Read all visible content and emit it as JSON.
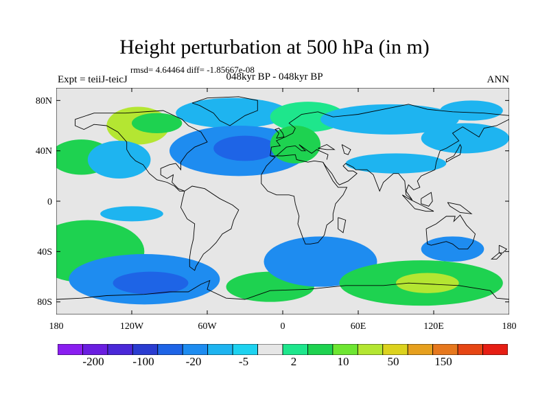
{
  "title": "Height perturbation at 500 hPa (in m)",
  "stats": "rmsd= 4.64464  diff= -1.85667e-08",
  "experiment": "Expt = teiiJ-teicJ",
  "period": "048kyr BP - 048kyr BP",
  "season": "ANN",
  "lat_ticks": [
    "80N",
    "40N",
    "0",
    "40S",
    "80S"
  ],
  "lon_ticks": [
    "180",
    "120W",
    "60W",
    "0",
    "60E",
    "120E",
    "180"
  ],
  "colorbar": {
    "colors": [
      "#8a1ef0",
      "#6a1ee0",
      "#4a28d8",
      "#2a3cd0",
      "#1e64e6",
      "#1e8cf0",
      "#1eb4f0",
      "#1ed2f0",
      "#e6e6e6",
      "#1ee68c",
      "#1ed250",
      "#6ee632",
      "#b4e632",
      "#dcd21e",
      "#e6a01e",
      "#e6781e",
      "#e64614",
      "#e61e14"
    ],
    "labels": [
      "-200",
      "-100",
      "-20",
      "-5",
      "2",
      "10",
      "50",
      "150"
    ]
  },
  "colors": {
    "neutral": "#e6e6e6",
    "coast": "#000000"
  },
  "blobs": [
    {
      "lon": -115,
      "lat": 60,
      "rx": 25,
      "ry": 15,
      "cls": 2
    },
    {
      "lon": -40,
      "lat": 70,
      "rx": 45,
      "ry": 12,
      "cls": -1
    },
    {
      "lon": -100,
      "lat": 62,
      "rx": 20,
      "ry": 8,
      "cls": 1
    },
    {
      "lon": 20,
      "lat": 67,
      "rx": 30,
      "ry": 12,
      "cls": 0
    },
    {
      "lon": 85,
      "lat": 65,
      "rx": 55,
      "ry": 12,
      "cls": -1
    },
    {
      "lon": 150,
      "lat": 72,
      "rx": 25,
      "ry": 8,
      "cls": -1
    },
    {
      "lon": -160,
      "lat": 35,
      "rx": 25,
      "ry": 14,
      "cls": 1
    },
    {
      "lon": -130,
      "lat": 33,
      "rx": 25,
      "ry": 15,
      "cls": -1
    },
    {
      "lon": -35,
      "lat": 40,
      "rx": 55,
      "ry": 20,
      "cls": -2
    },
    {
      "lon": -30,
      "lat": 42,
      "rx": 25,
      "ry": 10,
      "cls": -3
    },
    {
      "lon": 10,
      "lat": 45,
      "rx": 20,
      "ry": 15,
      "cls": 1
    },
    {
      "lon": 90,
      "lat": 30,
      "rx": 40,
      "ry": 8,
      "cls": -1
    },
    {
      "lon": 145,
      "lat": 50,
      "rx": 35,
      "ry": 12,
      "cls": -1
    },
    {
      "lon": -120,
      "lat": -10,
      "rx": 25,
      "ry": 6,
      "cls": -1
    },
    {
      "lon": -155,
      "lat": -40,
      "rx": 45,
      "ry": 25,
      "cls": 1
    },
    {
      "lon": -110,
      "lat": -62,
      "rx": 60,
      "ry": 20,
      "cls": -2
    },
    {
      "lon": -105,
      "lat": -65,
      "rx": 30,
      "ry": 9,
      "cls": -3
    },
    {
      "lon": -10,
      "lat": -68,
      "rx": 35,
      "ry": 12,
      "cls": 1
    },
    {
      "lon": 30,
      "lat": -48,
      "rx": 45,
      "ry": 20,
      "cls": -2
    },
    {
      "lon": 135,
      "lat": -38,
      "rx": 25,
      "ry": 10,
      "cls": -2
    },
    {
      "lon": 110,
      "lat": -65,
      "rx": 65,
      "ry": 18,
      "cls": 1
    },
    {
      "lon": 115,
      "lat": -65,
      "rx": 25,
      "ry": 8,
      "cls": 2
    }
  ]
}
